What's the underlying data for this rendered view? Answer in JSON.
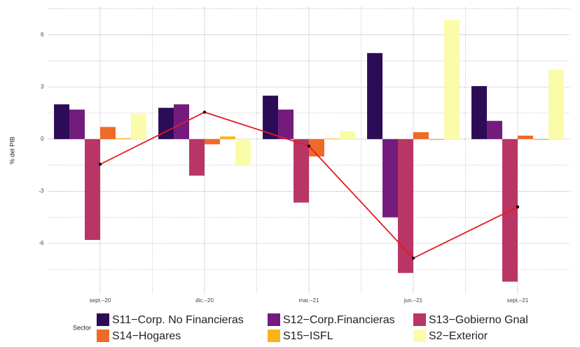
{
  "chart_data": {
    "type": "bar",
    "y_label": "% del PIB",
    "legend_title": "Sector",
    "categories": [
      "sept.–20",
      "dic.–20",
      "mar.–21",
      "jun.–21",
      "sept.–21"
    ],
    "series": [
      {
        "name": "S11−Corp. No Financieras",
        "color": "#2d0c57",
        "values": [
          2.0,
          1.8,
          2.5,
          4.95,
          3.05
        ]
      },
      {
        "name": "S12−Corp.Financieras",
        "color": "#731c7e",
        "values": [
          1.7,
          2.0,
          1.7,
          -4.5,
          1.05
        ]
      },
      {
        "name": "S13−Gobierno Gnal",
        "color": "#b83566",
        "values": [
          -5.8,
          -2.1,
          -3.65,
          -7.7,
          -8.2
        ]
      },
      {
        "name": "S14−Hogares",
        "color": "#ef6a28",
        "values": [
          0.7,
          -0.3,
          -1.0,
          0.4,
          0.2
        ]
      },
      {
        "name": "S15−ISFL",
        "color": "#fcb31b",
        "values": [
          0.05,
          0.15,
          0.03,
          -0.05,
          -0.05
        ]
      },
      {
        "name": "S2−Exterior",
        "color": "#fafcaa",
        "values": [
          1.45,
          -1.55,
          0.45,
          6.85,
          4.0
        ]
      }
    ],
    "line": {
      "color": "#e31a1c",
      "values": [
        -1.45,
        1.55,
        -0.4,
        -6.85,
        -3.9
      ]
    },
    "ylim": [
      -8.9,
      7.6
    ],
    "yticks": [
      -6,
      -3,
      0,
      3,
      6
    ],
    "yminor": [
      -7.5,
      -4.5,
      -1.5,
      1.5,
      4.5,
      7.5
    ],
    "grid": true
  }
}
